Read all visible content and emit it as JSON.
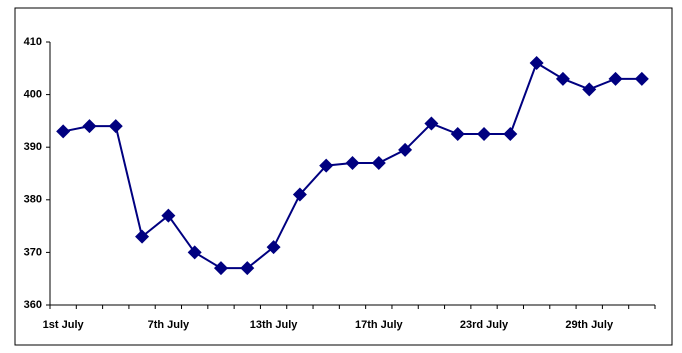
{
  "chart_data": {
    "type": "line",
    "categories": [
      "1st July",
      null,
      null,
      null,
      "7th July",
      null,
      null,
      null,
      "13th July",
      null,
      null,
      null,
      "17th July",
      null,
      null,
      null,
      "23rd July",
      null,
      null,
      null,
      "29th July",
      null,
      null
    ],
    "values": [
      393,
      394,
      394,
      373,
      377,
      370,
      367,
      367,
      371,
      381,
      386.5,
      387,
      387,
      389.5,
      394.5,
      392.5,
      392.5,
      392.5,
      406,
      403,
      401,
      403,
      403
    ],
    "color": "#000080",
    "ylim": [
      360,
      410
    ],
    "yticks": [
      360,
      370,
      380,
      390,
      400,
      410
    ],
    "grid": false
  }
}
